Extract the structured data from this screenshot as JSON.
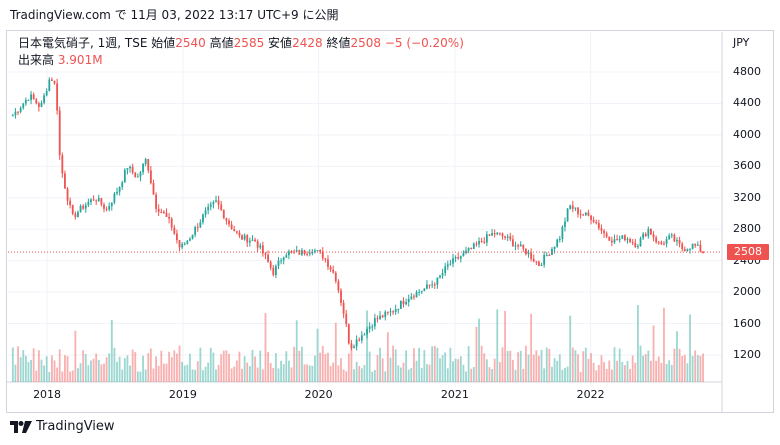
{
  "header": {
    "source_line": "TradingView.com で 11月 03, 2022 13:17 UTC+9 に公開"
  },
  "legend": {
    "title": "日本電気硝子, 1週, TSE",
    "open_label": "始値",
    "open": "2540",
    "high_label": "高値",
    "high": "2585",
    "low_label": "安値",
    "low": "2428",
    "close_label": "終値",
    "close": "2508",
    "change": "−5 (−0.20%)",
    "volume_label": "出来高",
    "volume": "3.901M"
  },
  "currency": "JPY",
  "last_price_tag": "2508",
  "brand": "TradingView",
  "colors": {
    "up": "#26a69a",
    "down": "#ef5350",
    "grid": "#f0f3fa",
    "price_line": "#ef5350"
  },
  "chart_data": {
    "type": "candlestick",
    "interval": "1 week",
    "x_ticks": [
      "2018",
      "2019",
      "2020",
      "2021",
      "2022"
    ],
    "y_ticks": [
      1200,
      1600,
      2000,
      2400,
      2800,
      3200,
      3600,
      4000,
      4400,
      4800
    ],
    "ylim": [
      900,
      5000
    ],
    "last_price": 2508,
    "path": [
      [
        "2017-10-01",
        4250
      ],
      [
        "2017-11-15",
        4500
      ],
      [
        "2017-12-15",
        4350
      ],
      [
        "2018-01-10",
        4750
      ],
      [
        "2018-01-25",
        4600
      ],
      [
        "2018-02-05",
        3650
      ],
      [
        "2018-02-20",
        3300
      ],
      [
        "2018-03-10",
        2950
      ],
      [
        "2018-04-10",
        3100
      ],
      [
        "2018-05-10",
        3200
      ],
      [
        "2018-06-10",
        3050
      ],
      [
        "2018-07-15",
        3350
      ],
      [
        "2018-08-05",
        3600
      ],
      [
        "2018-09-01",
        3450
      ],
      [
        "2018-09-25",
        3700
      ],
      [
        "2018-10-20",
        3100
      ],
      [
        "2018-11-10",
        3000
      ],
      [
        "2018-12-01",
        2850
      ],
      [
        "2018-12-25",
        2550
      ],
      [
        "2019-01-20",
        2700
      ],
      [
        "2019-03-01",
        3000
      ],
      [
        "2019-04-01",
        3150
      ],
      [
        "2019-05-01",
        2900
      ],
      [
        "2019-06-01",
        2700
      ],
      [
        "2019-07-15",
        2650
      ],
      [
        "2019-08-10",
        2450
      ],
      [
        "2019-09-01",
        2250
      ],
      [
        "2019-10-01",
        2500
      ],
      [
        "2019-11-15",
        2500
      ],
      [
        "2019-12-15",
        2550
      ],
      [
        "2020-01-15",
        2450
      ],
      [
        "2020-02-15",
        2200
      ],
      [
        "2020-03-10",
        1700
      ],
      [
        "2020-03-25",
        1300
      ],
      [
        "2020-04-15",
        1400
      ],
      [
        "2020-06-01",
        1650
      ],
      [
        "2020-07-15",
        1750
      ],
      [
        "2020-09-01",
        1950
      ],
      [
        "2020-10-15",
        2050
      ],
      [
        "2020-11-15",
        2150
      ],
      [
        "2020-12-15",
        2350
      ],
      [
        "2021-01-15",
        2450
      ],
      [
        "2021-02-15",
        2550
      ],
      [
        "2021-03-15",
        2650
      ],
      [
        "2021-04-15",
        2750
      ],
      [
        "2021-05-15",
        2700
      ],
      [
        "2021-06-15",
        2600
      ],
      [
        "2021-07-15",
        2500
      ],
      [
        "2021-08-15",
        2350
      ],
      [
        "2021-09-10",
        2500
      ],
      [
        "2021-10-10",
        2700
      ],
      [
        "2021-11-05",
        3100
      ],
      [
        "2021-12-05",
        3000
      ],
      [
        "2022-01-05",
        2950
      ],
      [
        "2022-02-05",
        2750
      ],
      [
        "2022-03-05",
        2650
      ],
      [
        "2022-04-05",
        2700
      ],
      [
        "2022-05-05",
        2600
      ],
      [
        "2022-06-05",
        2800
      ],
      [
        "2022-07-05",
        2600
      ],
      [
        "2022-08-05",
        2700
      ],
      [
        "2022-09-05",
        2550
      ],
      [
        "2022-10-05",
        2600
      ],
      [
        "2022-10-31",
        2508
      ]
    ],
    "volume_approx": "weekly bars, typically 0.5M–4M, with spikes near early 2018, mid 2019, 2020 and late 2021",
    "type_note": "weekly OHLC candles with volume histogram"
  }
}
